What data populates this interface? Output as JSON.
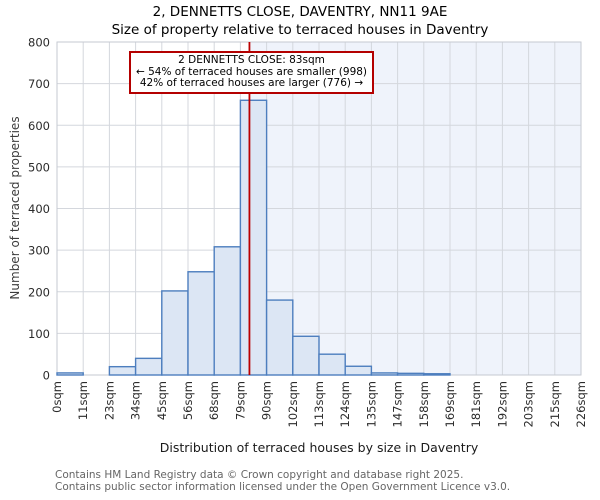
{
  "title": "2, DENNETTS CLOSE, DAVENTRY, NN11 9AE",
  "subtitle": "Size of property relative to terraced houses in Daventry",
  "annotation": {
    "line1": "2 DENNETTS CLOSE: 83sqm",
    "line2": "← 54% of terraced houses are smaller (998)",
    "line3": "42% of terraced houses are larger (776) →"
  },
  "chart_data": {
    "type": "bar",
    "title": "2, DENNETTS CLOSE, DAVENTRY, NN11 9AE",
    "subtitle": "Size of property relative to terraced houses in Daventry",
    "categories": [
      "0sqm",
      "11sqm",
      "23sqm",
      "34sqm",
      "45sqm",
      "56sqm",
      "68sqm",
      "79sqm",
      "90sqm",
      "102sqm",
      "113sqm",
      "124sqm",
      "135sqm",
      "147sqm",
      "158sqm",
      "169sqm",
      "181sqm",
      "192sqm",
      "203sqm",
      "215sqm",
      "226sqm"
    ],
    "bin_edges_sqm": [
      0,
      11,
      23,
      34,
      45,
      56,
      68,
      79,
      90,
      102,
      113,
      124,
      135,
      147,
      158,
      169,
      181,
      192,
      203,
      215,
      226
    ],
    "values": [
      5,
      0,
      20,
      40,
      202,
      248,
      308,
      660,
      180,
      93,
      50,
      21,
      5,
      4,
      3,
      0,
      0,
      0,
      0,
      0
    ],
    "xlabel": "Distribution of terraced houses by size in Daventry",
    "ylabel": "Number of terraced properties",
    "ylim": [
      0,
      800
    ],
    "y_ticks": [
      0,
      100,
      200,
      300,
      400,
      500,
      600,
      700,
      800
    ],
    "x_max_sqm": 226,
    "grid": "on",
    "legend": "none",
    "marker": {
      "value_sqm": 83,
      "label": "2 DENNETTS CLOSE: 83sqm"
    }
  },
  "colors": {
    "bar_fill": "#dce6f4",
    "bar_edge": "#4d7ebe",
    "marker_line": "#bb0000",
    "annotation_border": "#b40000",
    "grid_line": "#d4d7dd",
    "plot_border": "#c6cad2",
    "highlight_bg": "#eff3fb",
    "tick_text": "#2b2b2b",
    "footer_text": "#666666"
  },
  "footer": {
    "line1": "Contains HM Land Registry data © Crown copyright and database right 2025.",
    "line2": "Contains public sector information licensed under the Open Government Licence v3.0."
  }
}
